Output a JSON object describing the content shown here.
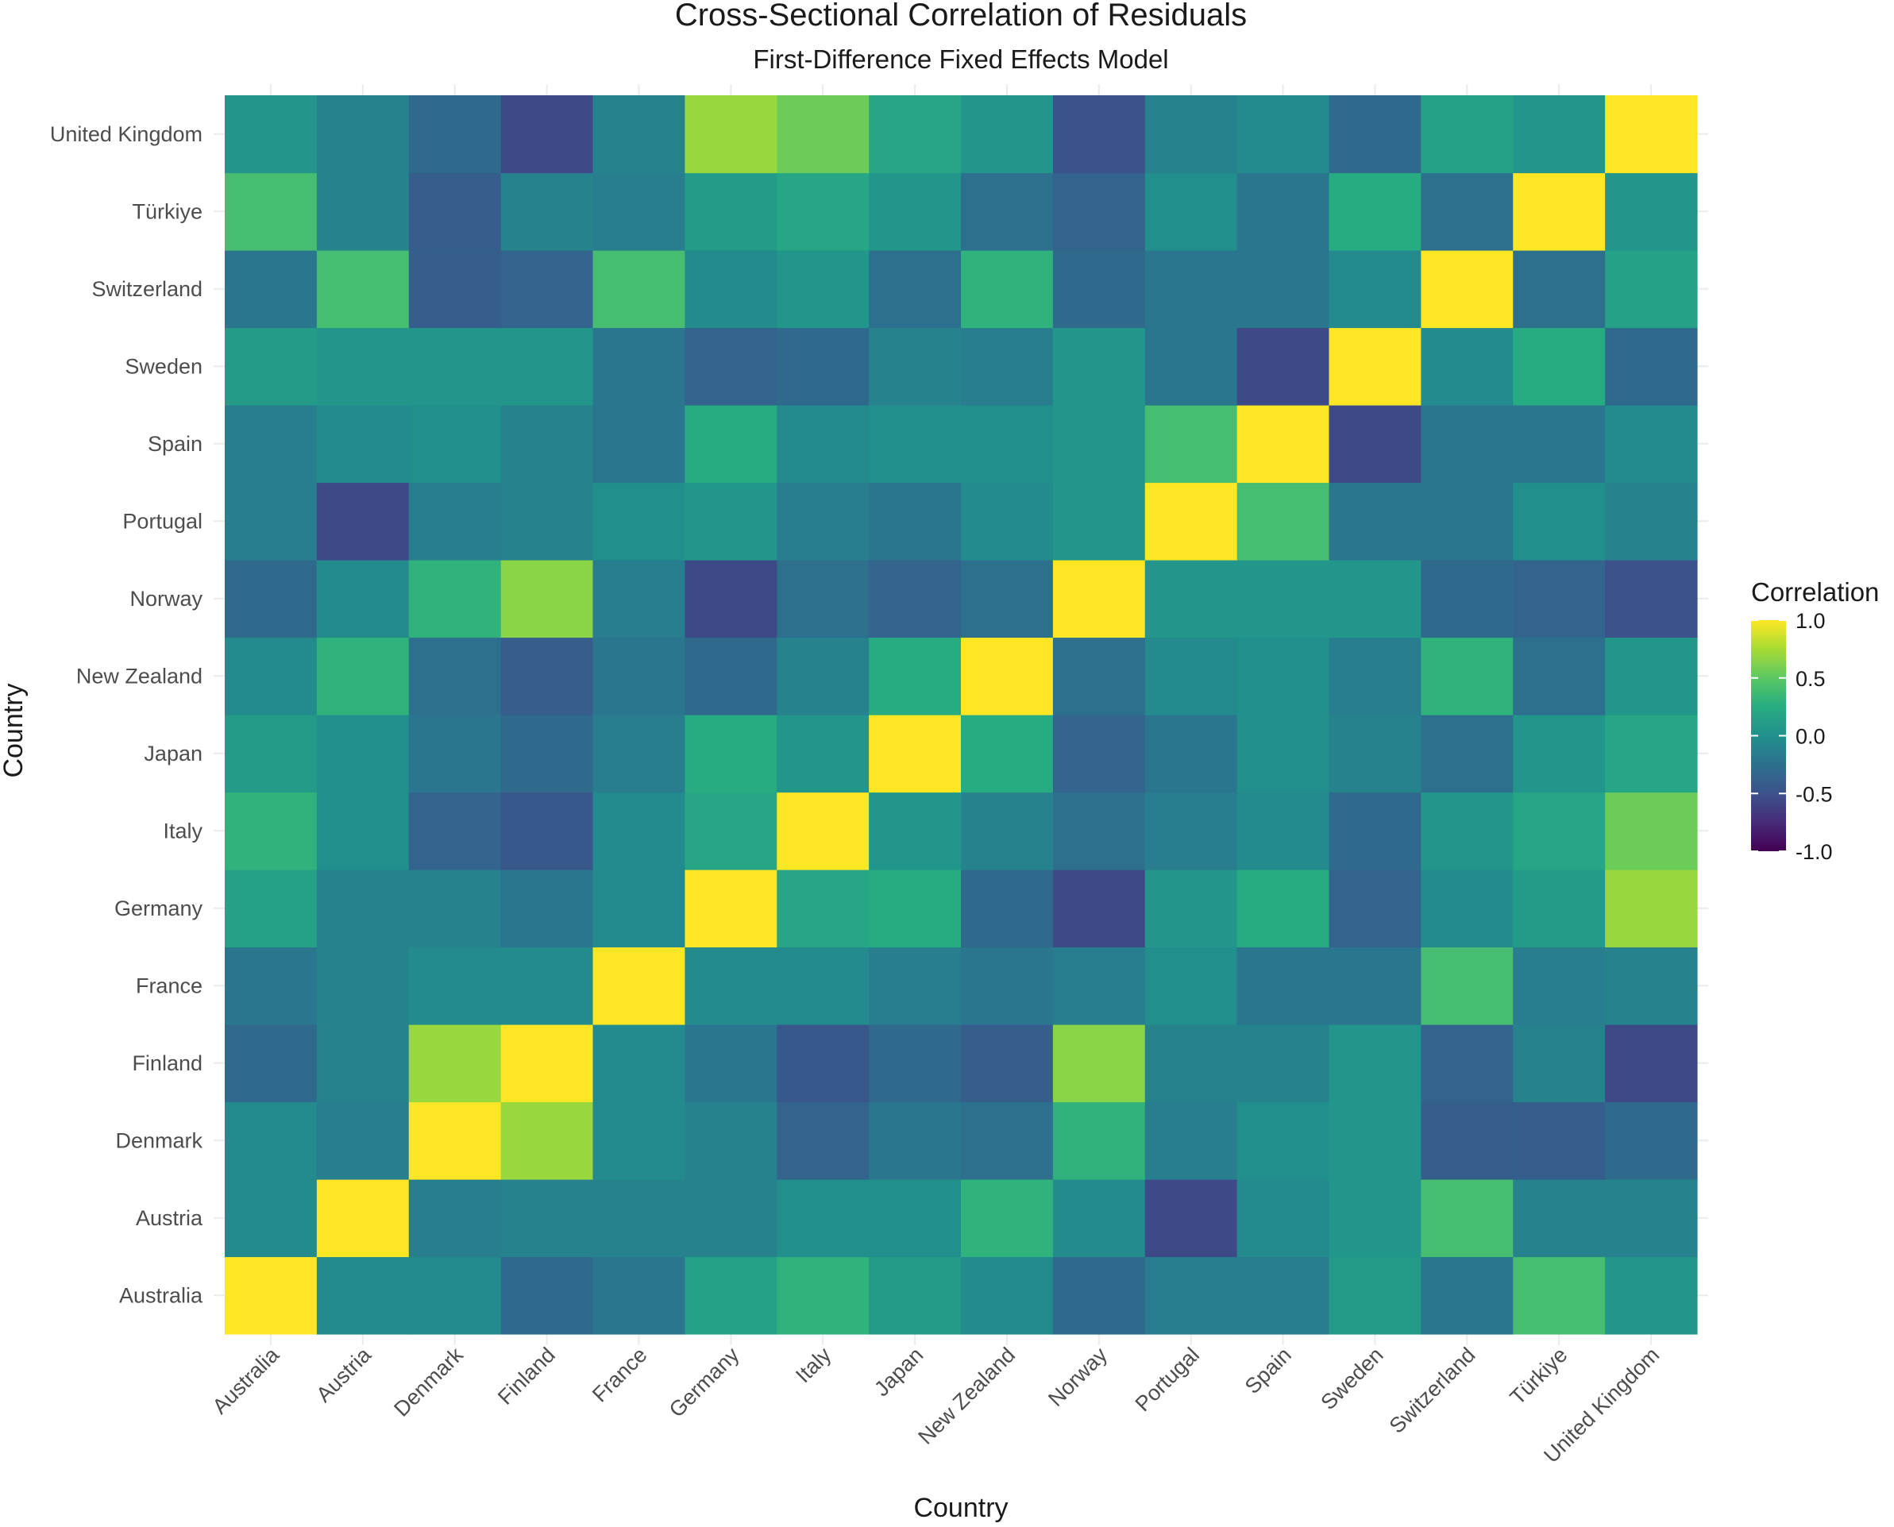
{
  "chart_data": {
    "type": "heatmap",
    "title": "Cross-Sectional Correlation of Residuals",
    "subtitle": "First-Difference Fixed Effects Model",
    "xlabel": "Country",
    "ylabel": "Country",
    "legend_title": "Correlation",
    "legend_position": "right",
    "color_scale": "viridis",
    "zlim": [
      -1.0,
      1.0
    ],
    "legend_ticks": [
      "1.0",
      "0.5",
      "0.0",
      "-0.5",
      "-1.0"
    ],
    "legend_tick_values": [
      1.0,
      0.5,
      0.0,
      -0.5,
      -1.0
    ],
    "grid": true,
    "countries": [
      "Australia",
      "Austria",
      "Denmark",
      "Finland",
      "France",
      "Germany",
      "Italy",
      "Japan",
      "New Zealand",
      "Norway",
      "Portugal",
      "Spain",
      "Sweden",
      "Switzerland",
      "Türkiye",
      "United Kingdom"
    ],
    "matrix": [
      [
        1.0,
        -0.05,
        -0.05,
        -0.3,
        -0.2,
        0.15,
        0.3,
        0.1,
        -0.05,
        -0.3,
        -0.15,
        -0.15,
        0.1,
        -0.2,
        0.4,
        0.05
      ],
      [
        -0.05,
        1.0,
        -0.15,
        -0.1,
        -0.1,
        -0.1,
        0.0,
        0.0,
        0.3,
        -0.05,
        -0.55,
        -0.05,
        0.05,
        0.4,
        -0.1,
        -0.1
      ],
      [
        -0.05,
        -0.15,
        1.0,
        0.7,
        -0.05,
        -0.1,
        -0.35,
        -0.2,
        -0.25,
        0.3,
        -0.15,
        0.0,
        0.05,
        -0.4,
        -0.4,
        -0.3
      ],
      [
        -0.3,
        -0.1,
        0.7,
        1.0,
        -0.05,
        -0.2,
        -0.45,
        -0.3,
        -0.4,
        0.65,
        -0.1,
        -0.1,
        0.05,
        -0.35,
        -0.1,
        -0.55
      ],
      [
        -0.2,
        -0.1,
        -0.05,
        -0.05,
        1.0,
        -0.05,
        -0.05,
        -0.15,
        -0.2,
        -0.15,
        0.0,
        -0.2,
        -0.2,
        0.4,
        -0.15,
        -0.1
      ],
      [
        0.15,
        -0.1,
        -0.1,
        -0.2,
        -0.05,
        1.0,
        0.2,
        0.25,
        -0.3,
        -0.55,
        0.05,
        0.25,
        -0.35,
        -0.05,
        0.1,
        0.7
      ],
      [
        0.3,
        0.0,
        -0.35,
        -0.45,
        -0.05,
        0.2,
        1.0,
        0.05,
        -0.1,
        -0.25,
        -0.15,
        -0.05,
        -0.3,
        0.05,
        0.2,
        0.55
      ],
      [
        0.1,
        0.0,
        -0.2,
        -0.3,
        -0.15,
        0.25,
        0.05,
        1.0,
        0.25,
        -0.35,
        -0.2,
        0.0,
        -0.1,
        -0.25,
        0.05,
        0.2
      ],
      [
        -0.05,
        0.3,
        -0.25,
        -0.4,
        -0.2,
        -0.3,
        -0.1,
        0.25,
        1.0,
        -0.25,
        -0.05,
        0.0,
        -0.15,
        0.3,
        -0.25,
        0.05
      ],
      [
        -0.3,
        -0.05,
        0.3,
        0.65,
        -0.15,
        -0.55,
        -0.25,
        -0.35,
        -0.25,
        1.0,
        0.05,
        0.05,
        0.05,
        -0.3,
        -0.35,
        -0.5
      ],
      [
        -0.15,
        -0.55,
        -0.15,
        -0.1,
        0.0,
        0.05,
        -0.15,
        -0.2,
        -0.05,
        0.05,
        1.0,
        0.4,
        -0.2,
        -0.2,
        0.0,
        -0.1
      ],
      [
        -0.15,
        -0.05,
        0.0,
        -0.1,
        -0.2,
        0.25,
        -0.05,
        0.0,
        0.0,
        0.05,
        0.4,
        1.0,
        -0.55,
        -0.2,
        -0.2,
        -0.05
      ],
      [
        0.1,
        0.05,
        0.05,
        0.05,
        -0.2,
        -0.35,
        -0.3,
        -0.1,
        -0.15,
        0.05,
        -0.2,
        -0.55,
        1.0,
        -0.05,
        0.25,
        -0.3
      ],
      [
        -0.2,
        0.4,
        -0.4,
        -0.35,
        0.4,
        -0.05,
        0.05,
        -0.25,
        0.3,
        -0.3,
        -0.2,
        -0.2,
        -0.05,
        1.0,
        -0.25,
        0.15
      ],
      [
        0.4,
        -0.1,
        -0.4,
        -0.1,
        -0.15,
        0.1,
        0.2,
        0.05,
        -0.25,
        -0.35,
        0.0,
        -0.2,
        0.25,
        -0.25,
        1.0,
        0.05
      ],
      [
        0.05,
        -0.1,
        -0.3,
        -0.55,
        -0.1,
        0.7,
        0.55,
        0.2,
        0.05,
        -0.5,
        -0.1,
        -0.05,
        -0.3,
        0.15,
        0.05,
        1.0
      ]
    ]
  }
}
